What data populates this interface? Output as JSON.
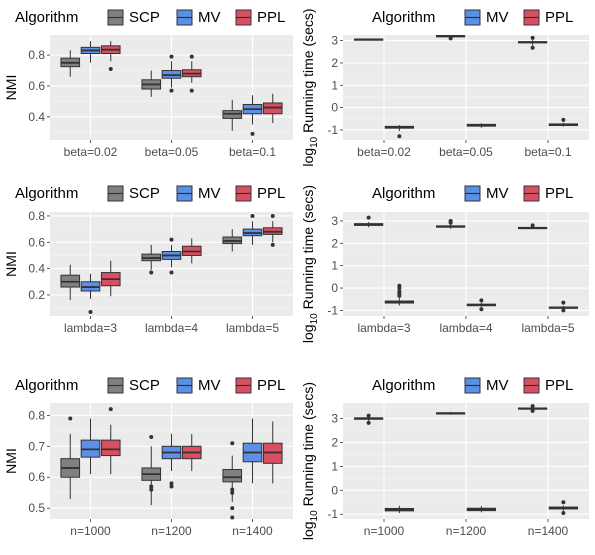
{
  "colors": {
    "SCP": "#808080",
    "MV": "#5b8fe8",
    "PPL": "#d94f61"
  },
  "chart_data": [
    {
      "type": "box",
      "panel": "nmi-beta",
      "legend": {
        "title": "Algorithm",
        "items": [
          "SCP",
          "MV",
          "PPL"
        ]
      },
      "ylabel": "NMI",
      "yticks": [
        "0.4",
        "0.6",
        "0.8"
      ],
      "ylim": [
        0.25,
        0.93
      ],
      "categories": [
        "beta=0.02",
        "beta=0.05",
        "beta=0.1"
      ],
      "series": [
        {
          "name": "SCP",
          "boxes": [
            {
              "min": 0.66,
              "q1": 0.725,
              "med": 0.75,
              "q3": 0.78,
              "max": 0.83,
              "out": []
            },
            {
              "min": 0.53,
              "q1": 0.58,
              "med": 0.61,
              "q3": 0.64,
              "max": 0.7,
              "out": []
            },
            {
              "min": 0.31,
              "q1": 0.39,
              "med": 0.42,
              "q3": 0.44,
              "max": 0.51,
              "out": []
            }
          ]
        },
        {
          "name": "MV",
          "boxes": [
            {
              "min": 0.75,
              "q1": 0.81,
              "med": 0.83,
              "q3": 0.85,
              "max": 0.89,
              "out": []
            },
            {
              "min": 0.59,
              "q1": 0.65,
              "med": 0.67,
              "q3": 0.7,
              "max": 0.76,
              "out": [
                0.79,
                0.57
              ]
            },
            {
              "min": 0.35,
              "q1": 0.42,
              "med": 0.45,
              "q3": 0.48,
              "max": 0.54,
              "out": [
                0.29
              ]
            }
          ]
        },
        {
          "name": "PPL",
          "boxes": [
            {
              "min": 0.76,
              "q1": 0.81,
              "med": 0.835,
              "q3": 0.86,
              "max": 0.89,
              "out": [
                0.71
              ]
            },
            {
              "min": 0.62,
              "q1": 0.66,
              "med": 0.68,
              "q3": 0.705,
              "max": 0.76,
              "out": [
                0.79,
                0.57
              ]
            },
            {
              "min": 0.36,
              "q1": 0.42,
              "med": 0.46,
              "q3": 0.49,
              "max": 0.55,
              "out": []
            }
          ]
        }
      ]
    },
    {
      "type": "box",
      "panel": "time-beta",
      "legend": {
        "title": "Algorithm",
        "items": [
          "MV",
          "PPL"
        ]
      },
      "ylabel_pre": "log",
      "ylabel_sub": "10",
      "ylabel_post": " Running time (secs)",
      "yticks": [
        "-1",
        "0",
        "1",
        "2",
        "3"
      ],
      "ylim": [
        -1.45,
        3.25
      ],
      "categories": [
        "beta=0.02",
        "beta=0.05",
        "beta=0.1"
      ],
      "series": [
        {
          "name": "MV",
          "boxes": [
            {
              "min": 3.0,
              "q1": 3.03,
              "med": 3.05,
              "q3": 3.07,
              "max": 3.1,
              "out": []
            },
            {
              "min": 3.17,
              "q1": 3.2,
              "med": 3.21,
              "q3": 3.22,
              "max": 3.24,
              "out": [
                3.1
              ]
            },
            {
              "min": 2.78,
              "q1": 2.9,
              "med": 2.93,
              "q3": 2.95,
              "max": 3.02,
              "out": [
                2.68,
                3.12
              ]
            }
          ]
        },
        {
          "name": "PPL",
          "boxes": [
            {
              "min": -1.05,
              "q1": -0.92,
              "med": -0.88,
              "q3": -0.84,
              "max": -0.78,
              "out": [
                -1.28
              ]
            },
            {
              "min": -0.9,
              "q1": -0.83,
              "med": -0.79,
              "q3": -0.75,
              "max": -0.7,
              "out": []
            },
            {
              "min": -0.85,
              "q1": -0.8,
              "med": -0.77,
              "q3": -0.73,
              "max": -0.68,
              "out": [
                -0.55
              ]
            }
          ]
        }
      ]
    },
    {
      "type": "box",
      "panel": "nmi-lambda",
      "legend": {
        "title": "Algorithm",
        "items": [
          "SCP",
          "MV",
          "PPL"
        ]
      },
      "ylabel": "NMI",
      "yticks": [
        "0.2",
        "0.4",
        "0.6",
        "0.8"
      ],
      "ylim": [
        0.04,
        0.83
      ],
      "categories": [
        "lambda=3",
        "lambda=4",
        "lambda=5"
      ],
      "series": [
        {
          "name": "SCP",
          "boxes": [
            {
              "min": 0.16,
              "q1": 0.26,
              "med": 0.3,
              "q3": 0.35,
              "max": 0.43,
              "out": []
            },
            {
              "min": 0.39,
              "q1": 0.46,
              "med": 0.48,
              "q3": 0.51,
              "max": 0.58,
              "out": [
                0.37
              ]
            },
            {
              "min": 0.53,
              "q1": 0.59,
              "med": 0.61,
              "q3": 0.64,
              "max": 0.7,
              "out": []
            }
          ]
        },
        {
          "name": "MV",
          "boxes": [
            {
              "min": 0.17,
              "q1": 0.23,
              "med": 0.26,
              "q3": 0.3,
              "max": 0.36,
              "out": [
                0.07
              ]
            },
            {
              "min": 0.41,
              "q1": 0.47,
              "med": 0.5,
              "q3": 0.53,
              "max": 0.58,
              "out": [
                0.37,
                0.62
              ]
            },
            {
              "min": 0.58,
              "q1": 0.65,
              "med": 0.67,
              "q3": 0.7,
              "max": 0.76,
              "out": [
                0.8
              ]
            }
          ]
        },
        {
          "name": "PPL",
          "boxes": [
            {
              "min": 0.19,
              "q1": 0.27,
              "med": 0.32,
              "q3": 0.37,
              "max": 0.46,
              "out": []
            },
            {
              "min": 0.44,
              "q1": 0.5,
              "med": 0.53,
              "q3": 0.57,
              "max": 0.63,
              "out": []
            },
            {
              "min": 0.6,
              "q1": 0.66,
              "med": 0.68,
              "q3": 0.71,
              "max": 0.76,
              "out": [
                0.8,
                0.58
              ]
            }
          ]
        }
      ]
    },
    {
      "type": "box",
      "panel": "time-lambda",
      "legend": {
        "title": "Algorithm",
        "items": [
          "MV",
          "PPL"
        ]
      },
      "ylabel_pre": "log",
      "ylabel_sub": "10",
      "ylabel_post": " Running time (secs)",
      "yticks": [
        "-1",
        "0",
        "1",
        "2",
        "3"
      ],
      "ylim": [
        -1.25,
        3.4
      ],
      "categories": [
        "lambda=3",
        "lambda=4",
        "lambda=5"
      ],
      "series": [
        {
          "name": "MV",
          "boxes": [
            {
              "min": 2.72,
              "q1": 2.8,
              "med": 2.84,
              "q3": 2.88,
              "max": 2.95,
              "out": [
                3.15
              ]
            },
            {
              "min": 2.65,
              "q1": 2.72,
              "med": 2.75,
              "q3": 2.78,
              "max": 2.85,
              "out": [
                3.0,
                2.92
              ]
            },
            {
              "min": 2.64,
              "q1": 2.67,
              "med": 2.69,
              "q3": 2.71,
              "max": 2.75,
              "out": [
                2.8
              ]
            }
          ]
        },
        {
          "name": "PPL",
          "boxes": [
            {
              "min": -0.78,
              "q1": -0.67,
              "med": -0.62,
              "q3": -0.58,
              "max": -0.45,
              "out": [
                -0.35,
                -0.25,
                -0.15,
                0.0,
                0.1
              ]
            },
            {
              "min": -0.85,
              "q1": -0.79,
              "med": -0.76,
              "q3": -0.72,
              "max": -0.65,
              "out": [
                -0.55,
                -0.95
              ]
            },
            {
              "min": -0.95,
              "q1": -0.9,
              "med": -0.88,
              "q3": -0.85,
              "max": -0.8,
              "out": [
                -0.65,
                -1.0
              ]
            }
          ]
        }
      ]
    },
    {
      "type": "box",
      "panel": "nmi-n",
      "legend": {
        "title": "Algorithm",
        "items": [
          "SCP",
          "MV",
          "PPL"
        ]
      },
      "ylabel": "NMI",
      "yticks": [
        "0.5",
        "0.6",
        "0.7",
        "0.8"
      ],
      "ylim": [
        0.465,
        0.84
      ],
      "categories": [
        "n=1000",
        "n=1200",
        "n=1400"
      ],
      "series": [
        {
          "name": "SCP",
          "boxes": [
            {
              "min": 0.53,
              "q1": 0.6,
              "med": 0.63,
              "q3": 0.66,
              "max": 0.74,
              "out": [
                0.79
              ]
            },
            {
              "min": 0.51,
              "q1": 0.59,
              "med": 0.61,
              "q3": 0.63,
              "max": 0.7,
              "out": [
                0.73,
                0.57,
                0.56
              ]
            },
            {
              "min": 0.52,
              "q1": 0.585,
              "med": 0.6,
              "q3": 0.625,
              "max": 0.67,
              "out": [
                0.71,
                0.56,
                0.55,
                0.5,
                0.47
              ]
            }
          ]
        },
        {
          "name": "MV",
          "boxes": [
            {
              "min": 0.61,
              "q1": 0.665,
              "med": 0.69,
              "q3": 0.72,
              "max": 0.79,
              "out": []
            },
            {
              "min": 0.62,
              "q1": 0.66,
              "med": 0.68,
              "q3": 0.7,
              "max": 0.74,
              "out": [
                0.58,
                0.57
              ]
            },
            {
              "min": 0.58,
              "q1": 0.65,
              "med": 0.68,
              "q3": 0.71,
              "max": 0.79,
              "out": []
            }
          ]
        },
        {
          "name": "PPL",
          "boxes": [
            {
              "min": 0.61,
              "q1": 0.67,
              "med": 0.69,
              "q3": 0.72,
              "max": 0.77,
              "out": [
                0.82
              ]
            },
            {
              "min": 0.62,
              "q1": 0.66,
              "med": 0.68,
              "q3": 0.7,
              "max": 0.74,
              "out": []
            },
            {
              "min": 0.58,
              "q1": 0.645,
              "med": 0.68,
              "q3": 0.71,
              "max": 0.78,
              "out": []
            }
          ]
        }
      ]
    },
    {
      "type": "box",
      "panel": "time-n",
      "legend": {
        "title": "Algorithm",
        "items": [
          "MV",
          "PPL"
        ]
      },
      "ylabel_pre": "log",
      "ylabel_sub": "10",
      "ylabel_post": " Running time (secs)",
      "yticks": [
        "-1",
        "0",
        "1",
        "2",
        "3"
      ],
      "ylim": [
        -1.2,
        3.65
      ],
      "categories": [
        "n=1000",
        "n=1200",
        "n=1400"
      ],
      "series": [
        {
          "name": "MV",
          "boxes": [
            {
              "min": 2.88,
              "q1": 2.97,
              "med": 3.0,
              "q3": 3.03,
              "max": 3.08,
              "out": [
                2.82,
                3.12
              ]
            },
            {
              "min": 3.16,
              "q1": 3.2,
              "med": 3.22,
              "q3": 3.24,
              "max": 3.27,
              "out": []
            },
            {
              "min": 3.35,
              "q1": 3.4,
              "med": 3.42,
              "q3": 3.44,
              "max": 3.48,
              "out": [
                3.32,
                3.52
              ]
            }
          ]
        },
        {
          "name": "PPL",
          "boxes": [
            {
              "min": -0.95,
              "q1": -0.86,
              "med": -0.81,
              "q3": -0.76,
              "max": -0.65,
              "out": []
            },
            {
              "min": -0.92,
              "q1": -0.85,
              "med": -0.8,
              "q3": -0.75,
              "max": -0.66,
              "out": []
            },
            {
              "min": -0.85,
              "q1": -0.78,
              "med": -0.74,
              "q3": -0.7,
              "max": -0.64,
              "out": [
                -0.5,
                -0.95
              ]
            }
          ]
        }
      ]
    }
  ]
}
